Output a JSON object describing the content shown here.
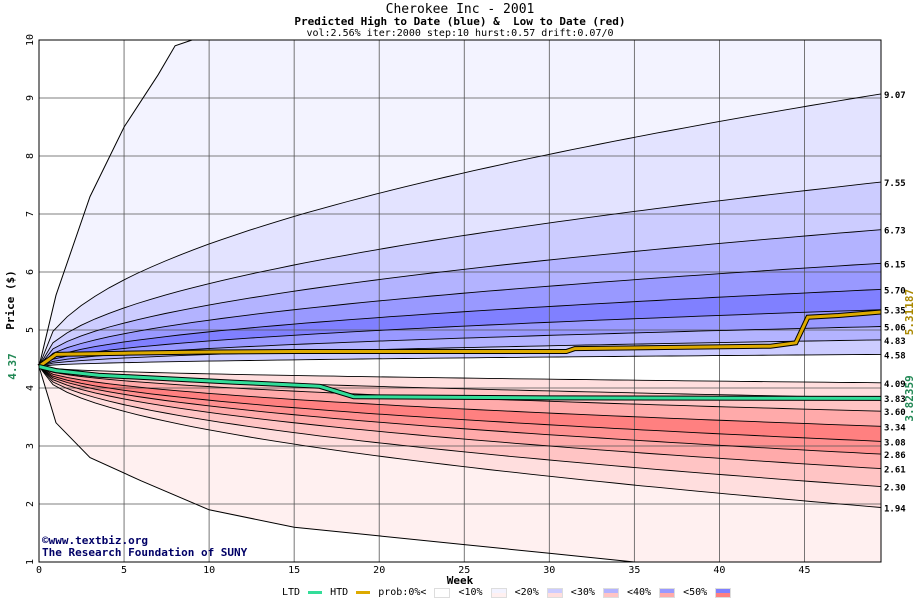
{
  "chart_data": {
    "type": "area",
    "title": "Cherokee Inc - 2001",
    "subtitle": "Predicted High to Date (blue) &  Low to Date (red)",
    "params": "vol:2.56% iter:2000 step:10 hurst:0.57 drift:0.07/0",
    "xlabel": "Week",
    "ylabel": "Price ($)",
    "xlim": [
      0,
      49.5
    ],
    "ylim": [
      1,
      10
    ],
    "x_ticks": [
      0,
      5,
      10,
      15,
      20,
      25,
      30,
      35,
      40,
      45
    ],
    "y_ticks": [
      1,
      2,
      3,
      4,
      5,
      6,
      7,
      8,
      9,
      10
    ],
    "grid": true,
    "start_price": 4.37,
    "start_label": "4.37",
    "high_quantile_end_values": [
      9.07,
      7.55,
      6.73,
      6.15,
      5.7,
      5.35,
      5.06,
      4.83,
      4.58
    ],
    "low_quantile_end_values": [
      4.09,
      3.83,
      3.6,
      3.34,
      3.08,
      2.86,
      2.61,
      2.3,
      1.94
    ],
    "end_labels": [
      "9.07",
      "7.55",
      "6.73",
      "6.15",
      "5.70",
      "5.35",
      "5.06",
      "4.83",
      "4.58",
      "4.09",
      "3.83",
      "3.60",
      "3.34",
      "3.08",
      "2.86",
      "2.61",
      "2.30",
      "1.94"
    ],
    "outer_envelope": {
      "upper": [
        [
          0,
          4.37
        ],
        [
          1,
          5.6
        ],
        [
          3,
          7.3
        ],
        [
          5,
          8.5
        ],
        [
          7,
          9.4
        ],
        [
          8,
          9.9
        ],
        [
          9,
          10.0
        ]
      ],
      "lower": [
        [
          0,
          4.37
        ],
        [
          1,
          3.4
        ],
        [
          3,
          2.8
        ],
        [
          6,
          2.4
        ],
        [
          10,
          1.9
        ],
        [
          15,
          1.6
        ],
        [
          20,
          1.45
        ],
        [
          25,
          1.3
        ],
        [
          30,
          1.15
        ],
        [
          35,
          1.0
        ]
      ]
    },
    "series": [
      {
        "name": "HTD",
        "color": "#ddaa00",
        "end_label": "5.31187",
        "points": [
          [
            0,
            4.37
          ],
          [
            1,
            4.58
          ],
          [
            5,
            4.6
          ],
          [
            10,
            4.62
          ],
          [
            15,
            4.63
          ],
          [
            20,
            4.63
          ],
          [
            31,
            4.63
          ],
          [
            31.5,
            4.68
          ],
          [
            43,
            4.72
          ],
          [
            44.5,
            4.78
          ],
          [
            45.2,
            5.22
          ],
          [
            47,
            5.25
          ],
          [
            49.5,
            5.31
          ]
        ]
      },
      {
        "name": "LTD",
        "color": "#33dd99",
        "end_label": "3.82359",
        "points": [
          [
            0,
            4.37
          ],
          [
            1,
            4.3
          ],
          [
            3.5,
            4.22
          ],
          [
            11.5,
            4.1
          ],
          [
            16.5,
            4.03
          ],
          [
            18.5,
            3.85
          ],
          [
            30,
            3.83
          ],
          [
            49.5,
            3.82
          ]
        ]
      }
    ],
    "band_colors": {
      "blue": [
        "#f3f3ff",
        "#e3e3ff",
        "#ccccff",
        "#b3b3ff",
        "#9999ff",
        "#8080ff",
        "#9999ff",
        "#b3b3ff",
        "#ccccff"
      ],
      "red": [
        "#fff0f0",
        "#ffdede",
        "#ffc4c4",
        "#ffaaaa",
        "#ff9090",
        "#ff8080",
        "#ffaaaa",
        "#ffc4c4",
        "#ffdede"
      ]
    }
  },
  "credits": {
    "line1": "©www.textbiz.org",
    "line2": "The Research Foundation of SUNY"
  },
  "legend": {
    "ltd": "LTD",
    "htd": "HTD",
    "prob": "prob:0%<",
    "b10": "<10%",
    "b20": "<20%",
    "b30": "<30%",
    "b40": "<40%",
    "b50": "<50%"
  }
}
